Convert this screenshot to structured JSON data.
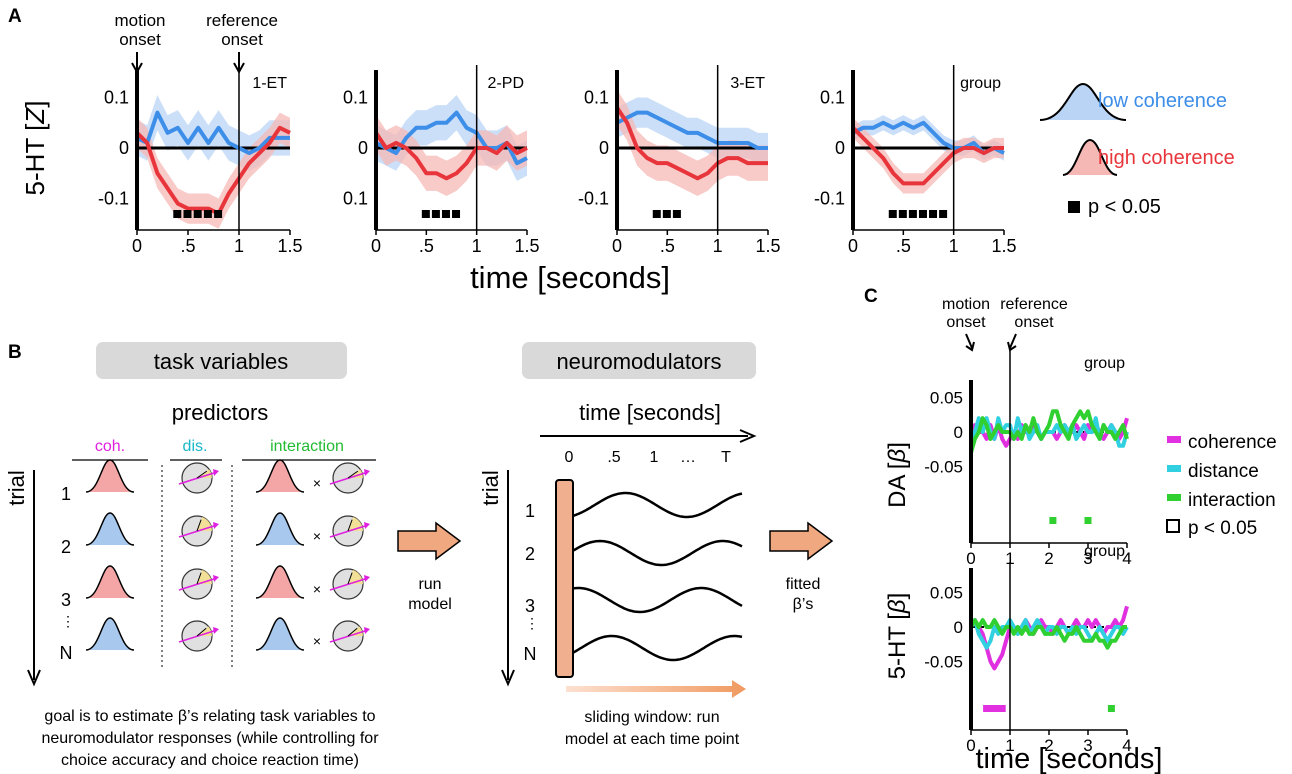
{
  "panel_labels": {
    "a": "A",
    "b": "B",
    "c": "C"
  },
  "panel_a": {
    "ylabel": "5-HT [Z]",
    "ylabel_main": "5-HT [",
    "ylabel_var": "Z",
    "ylabel_close": "]",
    "xlabel": "time [seconds]",
    "event_labels": {
      "motion": [
        "motion",
        "onset"
      ],
      "reference": [
        "reference",
        "onset"
      ]
    },
    "x_ticks": [
      "0",
      ".5",
      "1",
      "1.5"
    ],
    "y_ticks_standard": [
      "0.1",
      "0",
      "-0.1"
    ],
    "y_ticks_variant": [
      "0.1",
      "0",
      "0.1"
    ],
    "legend": {
      "low": "low coherence",
      "high": "high coherence",
      "sig": "p < 0.05"
    },
    "colors": {
      "low": "#3d8ee8",
      "high": "#e8353b",
      "low_band": "#b9d4f5",
      "high_band": "#f5b8b5"
    }
  },
  "chart_data": [
    {
      "type": "line",
      "title": "1-ET",
      "x": [
        0,
        0.1,
        0.2,
        0.3,
        0.4,
        0.5,
        0.6,
        0.7,
        0.8,
        0.9,
        1.0,
        1.1,
        1.2,
        1.3,
        1.4,
        1.5
      ],
      "xlim": [
        0,
        1.5
      ],
      "ylim": [
        -0.15,
        0.15
      ],
      "yticks": [
        "0.1",
        "0",
        "-0.1"
      ],
      "series": [
        {
          "name": "low coherence",
          "values": [
            0.02,
            0.01,
            0.07,
            0.03,
            0.04,
            0.01,
            0.04,
            0.01,
            0.04,
            0.01,
            0.0,
            -0.01,
            0.0,
            0.02,
            0.02,
            0.02
          ],
          "band": 0.035
        },
        {
          "name": "high coherence",
          "values": [
            0.03,
            0.01,
            -0.05,
            -0.08,
            -0.11,
            -0.12,
            -0.12,
            -0.12,
            -0.13,
            -0.09,
            -0.06,
            -0.03,
            -0.01,
            0.01,
            0.04,
            0.03
          ],
          "band": 0.03
        }
      ],
      "significant_x": [
        0.4,
        0.5,
        0.6,
        0.7,
        0.8
      ]
    },
    {
      "type": "line",
      "title": "2-PD",
      "x": [
        0,
        0.1,
        0.2,
        0.3,
        0.4,
        0.5,
        0.6,
        0.7,
        0.8,
        0.9,
        1.0,
        1.1,
        1.2,
        1.3,
        1.4,
        1.5
      ],
      "xlim": [
        0,
        1.5
      ],
      "ylim": [
        -0.15,
        0.15
      ],
      "yticks": [
        "0.1",
        "0",
        "0.1"
      ],
      "series": [
        {
          "name": "low coherence",
          "values": [
            0.01,
            0.0,
            -0.01,
            0.02,
            0.04,
            0.04,
            0.05,
            0.05,
            0.07,
            0.04,
            0.03,
            0.0,
            0.0,
            0.01,
            -0.03,
            -0.02
          ],
          "band": 0.035
        },
        {
          "name": "high coherence",
          "values": [
            0.03,
            0.0,
            0.01,
            0.0,
            -0.02,
            -0.05,
            -0.05,
            -0.06,
            -0.05,
            -0.03,
            0.0,
            0.0,
            -0.01,
            0.01,
            -0.01,
            0.0
          ],
          "band": 0.035
        }
      ],
      "significant_x": [
        0.5,
        0.6,
        0.7,
        0.8
      ]
    },
    {
      "type": "line",
      "title": "3-ET",
      "x": [
        0,
        0.1,
        0.2,
        0.3,
        0.4,
        0.5,
        0.6,
        0.7,
        0.8,
        0.9,
        1.0,
        1.1,
        1.2,
        1.3,
        1.4,
        1.5
      ],
      "xlim": [
        0,
        1.5
      ],
      "ylim": [
        -0.15,
        0.15
      ],
      "yticks": [
        "0.1",
        "0",
        "-0.1"
      ],
      "series": [
        {
          "name": "low coherence",
          "values": [
            0.05,
            0.06,
            0.07,
            0.07,
            0.06,
            0.05,
            0.04,
            0.03,
            0.03,
            0.02,
            0.01,
            0.01,
            0.01,
            0.01,
            0.0,
            0.0
          ],
          "band": 0.03
        },
        {
          "name": "high coherence",
          "values": [
            0.08,
            0.05,
            0.0,
            -0.02,
            -0.03,
            -0.03,
            -0.04,
            -0.05,
            -0.06,
            -0.05,
            -0.03,
            -0.02,
            -0.02,
            -0.03,
            -0.03,
            -0.03
          ],
          "band": 0.035
        }
      ],
      "significant_x": [
        0.4,
        0.5,
        0.6
      ]
    },
    {
      "type": "line",
      "title": "group",
      "x": [
        0,
        0.1,
        0.2,
        0.3,
        0.4,
        0.5,
        0.6,
        0.7,
        0.8,
        0.9,
        1.0,
        1.1,
        1.2,
        1.3,
        1.4,
        1.5
      ],
      "xlim": [
        0,
        1.5
      ],
      "ylim": [
        -0.15,
        0.15
      ],
      "yticks": [
        "0.1",
        "0",
        "-0.1"
      ],
      "series": [
        {
          "name": "low coherence",
          "values": [
            0.03,
            0.04,
            0.04,
            0.05,
            0.04,
            0.05,
            0.04,
            0.05,
            0.03,
            0.01,
            0.0,
            0.0,
            0.01,
            -0.01,
            0.0,
            -0.01
          ],
          "band": 0.015
        },
        {
          "name": "high coherence",
          "values": [
            0.04,
            0.02,
            0.0,
            -0.02,
            -0.05,
            -0.07,
            -0.07,
            -0.07,
            -0.05,
            -0.03,
            -0.01,
            0.0,
            0.0,
            -0.01,
            0.0,
            0.0
          ],
          "band": 0.02
        }
      ],
      "significant_x": [
        0.4,
        0.5,
        0.6,
        0.7,
        0.8,
        0.9
      ]
    },
    {
      "type": "line",
      "title": "group",
      "ylabel": "DA [β]",
      "x": [
        0,
        0.1,
        0.2,
        0.3,
        0.4,
        0.5,
        0.6,
        0.7,
        0.8,
        0.9,
        1.0,
        1.1,
        1.2,
        1.3,
        1.4,
        1.5,
        1.6,
        1.7,
        1.8,
        1.9,
        2.0,
        2.1,
        2.2,
        2.3,
        2.4,
        2.5,
        2.6,
        2.7,
        2.8,
        2.9,
        3.0,
        3.1,
        3.2,
        3.3,
        3.4,
        3.5,
        3.6,
        3.7,
        3.8,
        3.9,
        4.0
      ],
      "xlim": [
        0,
        4
      ],
      "ylim": [
        -0.07,
        0.07
      ],
      "xticks": [
        "0",
        "1",
        "2",
        "3",
        "4"
      ],
      "yticks": [
        "0.05",
        "0",
        "-0.05"
      ],
      "series": [
        {
          "name": "coherence",
          "values": [
            -0.03,
            0.01,
            0.0,
            0.0,
            -0.01,
            0.01,
            -0.01,
            0.01,
            -0.01,
            -0.02,
            -0.01,
            0.0,
            -0.01,
            0.01,
            0.0,
            0.0,
            0.01,
            0.0,
            -0.01,
            0.0,
            0.0,
            0.0,
            -0.01,
            0.0,
            0.01,
            0.0,
            0.0,
            0.01,
            0.0,
            -0.01,
            0.01,
            0.0,
            0.01,
            0.0,
            -0.01,
            0.0,
            0.01,
            0.0,
            -0.01,
            0.0,
            0.02
          ]
        },
        {
          "name": "distance",
          "values": [
            -0.02,
            0.0,
            0.02,
            0.0,
            0.02,
            0.0,
            -0.01,
            0.02,
            0.0,
            0.01,
            0.01,
            -0.01,
            0.02,
            0.0,
            0.01,
            -0.01,
            0.0,
            0.01,
            -0.01,
            0.0,
            0.0,
            0.0,
            0.01,
            0.0,
            0.01,
            0.0,
            0.01,
            -0.01,
            0.0,
            0.01,
            0.0,
            0.0,
            0.02,
            -0.01,
            0.01,
            0.0,
            0.01,
            0.0,
            -0.02,
            -0.02,
            0.0
          ]
        },
        {
          "name": "interaction",
          "values": [
            -0.03,
            -0.01,
            0.0,
            0.02,
            0.01,
            -0.01,
            0.0,
            0.01,
            0.0,
            0.0,
            0.0,
            -0.01,
            0.0,
            -0.01,
            0.01,
            0.0,
            0.02,
            0.0,
            -0.01,
            0.0,
            0.01,
            0.03,
            0.03,
            0.01,
            0.0,
            -0.01,
            0.01,
            0.02,
            0.03,
            0.02,
            0.03,
            0.01,
            0.0,
            -0.01,
            0.01,
            0.0,
            0.0,
            -0.01,
            0.0,
            0.01,
            -0.01
          ]
        }
      ],
      "significant": [
        {
          "series": "interaction",
          "x": [
            2.1,
            3.0
          ]
        }
      ]
    },
    {
      "type": "line",
      "title": "group",
      "ylabel": "5-HT [β]",
      "xlabel": "time [seconds]",
      "x": [
        0,
        0.1,
        0.2,
        0.3,
        0.4,
        0.5,
        0.6,
        0.7,
        0.8,
        0.9,
        1.0,
        1.1,
        1.2,
        1.3,
        1.4,
        1.5,
        1.6,
        1.7,
        1.8,
        1.9,
        2.0,
        2.1,
        2.2,
        2.3,
        2.4,
        2.5,
        2.6,
        2.7,
        2.8,
        2.9,
        3.0,
        3.1,
        3.2,
        3.3,
        3.4,
        3.5,
        3.6,
        3.7,
        3.8,
        3.9,
        4.0
      ],
      "xlim": [
        0,
        4
      ],
      "ylim": [
        -0.07,
        0.07
      ],
      "xticks": [
        "0",
        "1",
        "2",
        "3",
        "4"
      ],
      "yticks": [
        "0.05",
        "0",
        "-0.05"
      ],
      "series": [
        {
          "name": "coherence",
          "values": [
            0.0,
            0.01,
            0.0,
            -0.01,
            -0.03,
            -0.05,
            -0.06,
            -0.05,
            -0.04,
            -0.02,
            0.0,
            0.0,
            -0.01,
            0.0,
            0.01,
            0.0,
            -0.01,
            0.0,
            0.01,
            0.0,
            0.0,
            -0.01,
            0.0,
            0.01,
            0.0,
            -0.01,
            0.0,
            0.01,
            0.0,
            0.0,
            0.01,
            0.0,
            0.01,
            0.0,
            -0.01,
            0.0,
            0.0,
            0.01,
            0.0,
            0.01,
            0.03
          ]
        },
        {
          "name": "distance",
          "values": [
            0.0,
            0.01,
            -0.01,
            -0.02,
            -0.03,
            -0.02,
            0.0,
            -0.01,
            0.0,
            0.0,
            0.01,
            0.0,
            -0.01,
            0.0,
            0.01,
            -0.01,
            0.0,
            0.01,
            0.0,
            -0.01,
            0.0,
            0.0,
            -0.01,
            0.0,
            0.0,
            -0.01,
            0.0,
            -0.01,
            0.0,
            0.0,
            -0.01,
            -0.02,
            -0.01,
            0.0,
            -0.01,
            -0.02,
            -0.01,
            0.0,
            0.0,
            -0.01,
            0.0
          ]
        },
        {
          "name": "interaction",
          "values": [
            0.0,
            0.01,
            0.0,
            0.01,
            0.0,
            0.0,
            0.01,
            0.0,
            -0.01,
            0.0,
            0.0,
            -0.01,
            0.0,
            -0.01,
            0.0,
            -0.01,
            -0.01,
            0.0,
            0.0,
            -0.01,
            -0.01,
            -0.01,
            0.0,
            -0.01,
            -0.02,
            -0.01,
            -0.01,
            0.0,
            -0.01,
            -0.02,
            -0.02,
            -0.02,
            -0.01,
            -0.02,
            -0.02,
            -0.03,
            -0.02,
            -0.02,
            -0.01,
            0.0,
            0.0
          ]
        }
      ],
      "significant": [
        {
          "series": "coherence",
          "x": [
            0.4,
            0.5,
            0.6,
            0.7,
            0.8
          ]
        },
        {
          "series": "interaction",
          "x": [
            3.6
          ]
        }
      ]
    }
  ],
  "panel_b": {
    "task_variables": "task variables",
    "predictors": "predictors",
    "col_coh": "coh.",
    "col_dis": "dis.",
    "col_interaction": "interaction",
    "trial_label": "trial",
    "rows": [
      "1",
      "2",
      "3",
      "N"
    ],
    "times": "×",
    "run_model": [
      "run",
      "model"
    ],
    "neuromodulators": "neuromodulators",
    "time_seconds": "time [seconds]",
    "time_ticks": [
      "0",
      ".5",
      "1",
      "…",
      "T"
    ],
    "fitted": [
      "fitted",
      "β’s"
    ],
    "goal_text": [
      "goal is to estimate β’s relating task variables to",
      "neuromodulator responses (while controlling for",
      "choice accuracy and choice reaction time)"
    ],
    "sliding_text": [
      "sliding window: run",
      "model at each time point"
    ],
    "colors": {
      "coh": "#e020e0",
      "dis": "#18b8c8",
      "interaction": "#22bb33",
      "red_gauss": "#f4a6a6",
      "blue_gauss": "#a8c8ee",
      "arrow": "#f0a880"
    }
  },
  "panel_c": {
    "event_labels": {
      "motion": [
        "motion",
        "onset"
      ],
      "reference": [
        "reference",
        "onset"
      ]
    },
    "legend": {
      "coherence": "coherence",
      "distance": "distance",
      "interaction": "interaction",
      "sig": "p < 0.05"
    },
    "colors": {
      "coherence": "#e030e0",
      "distance": "#30d0e0",
      "interaction": "#30d030"
    },
    "xlabel": "time [seconds]"
  }
}
